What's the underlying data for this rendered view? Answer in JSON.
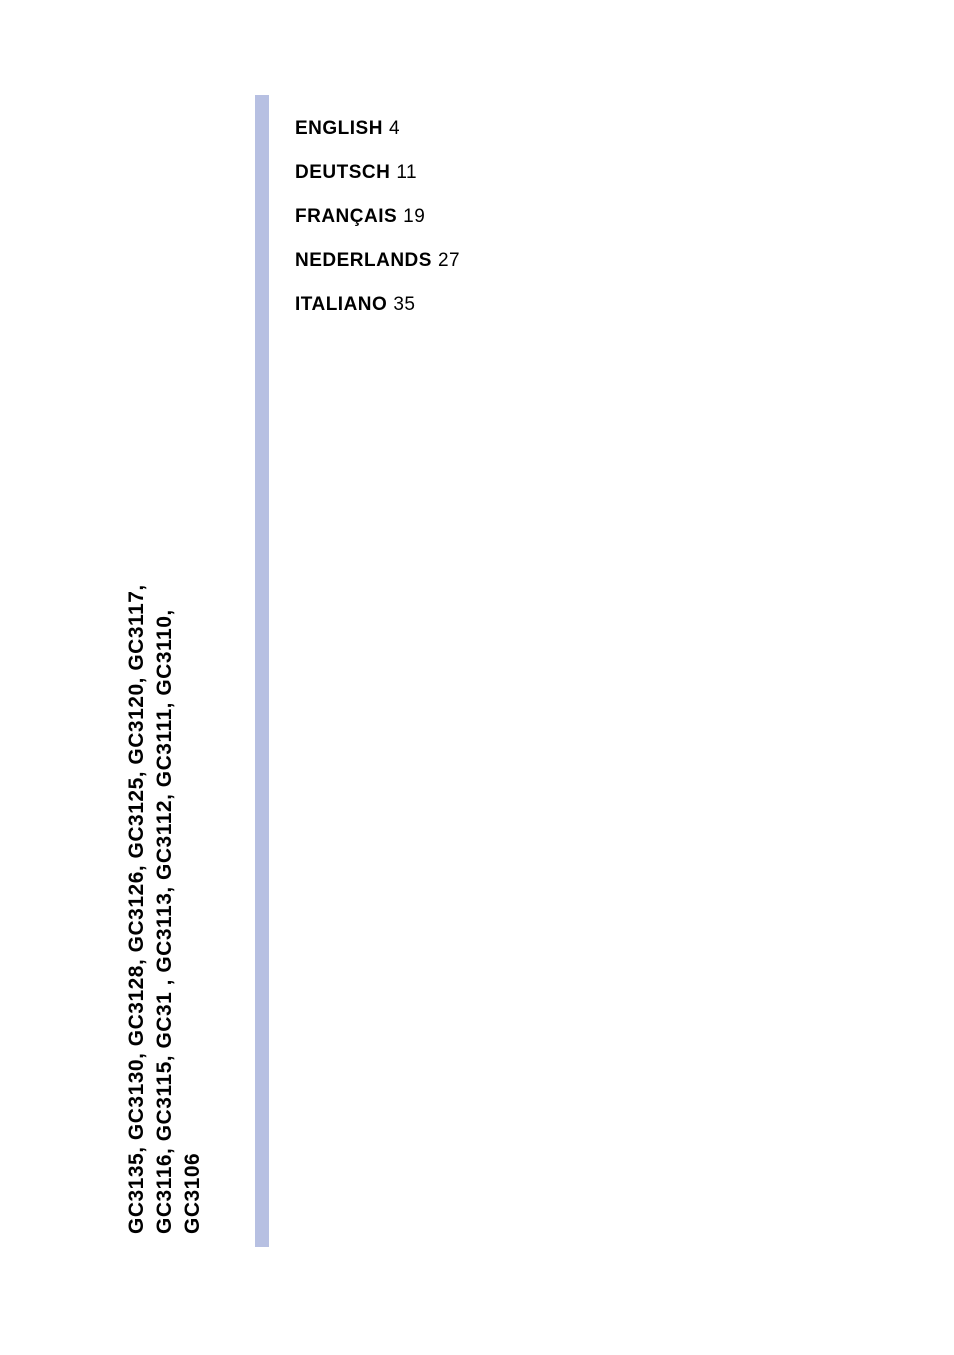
{
  "languages": [
    {
      "label": "ENGLISH",
      "page": "4"
    },
    {
      "label": "DEUTSCH",
      "page": "11"
    },
    {
      "label": "FRANÇAIS",
      "page": "19"
    },
    {
      "label": "NEDERLANDS",
      "page": "27"
    },
    {
      "label": "ITALIANO",
      "page": "35"
    }
  ],
  "side_title": {
    "line1": "GC3135, GC3130, GC3128, GC3126, GC3125, GC3120, GC3117,",
    "line2": "GC3116, GC3115,  GC31    , GC3113, GC3112, GC3111, GC3110,",
    "line3": "GC3106"
  },
  "colors": {
    "bar": "#b7c0e2",
    "text": "#000000",
    "background": "#ffffff"
  },
  "typography": {
    "lang_fontsize": 19,
    "side_fontsize": 21,
    "weight_bold": 700,
    "weight_regular": 400
  }
}
